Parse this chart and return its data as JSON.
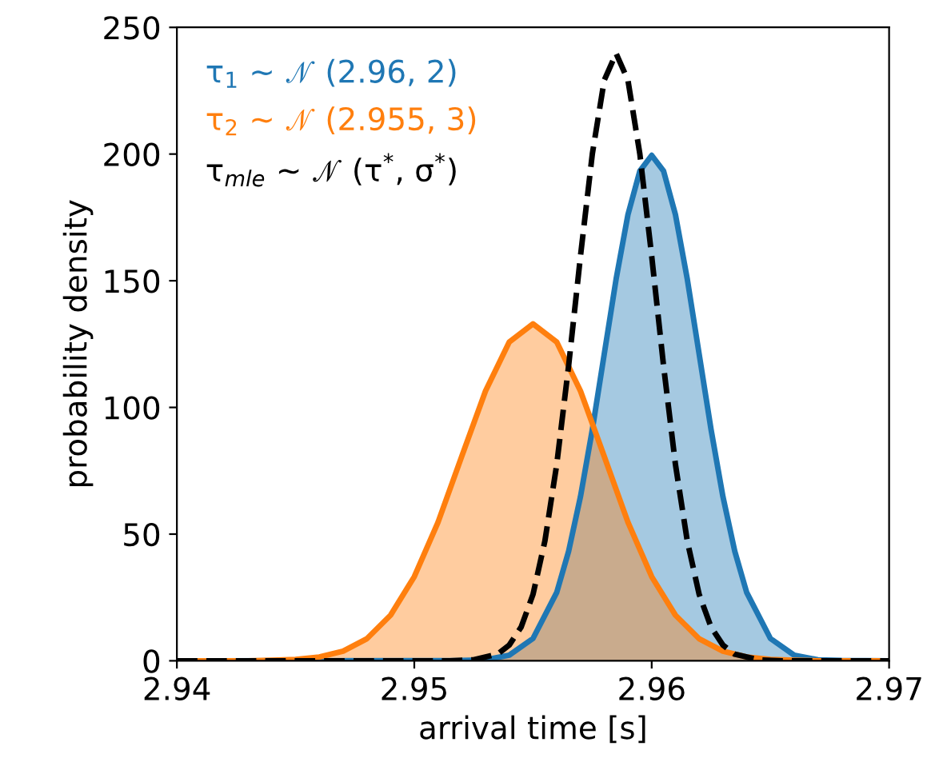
{
  "chart_data": {
    "type": "area",
    "xlabel": "arrival time [s]",
    "ylabel": "probability density",
    "xlim": [
      2.94,
      2.97
    ],
    "ylim": [
      0,
      250
    ],
    "xticks": [
      2.94,
      2.95,
      2.96,
      2.97
    ],
    "yticks": [
      0,
      50,
      100,
      150,
      200,
      250
    ],
    "grid": false,
    "series": [
      {
        "name": "τ$_{1}$ ∼ 𝒩 (2.96, 2)",
        "color": "#1f77b4",
        "x": [
          2.94,
          2.952,
          2.953,
          2.954,
          2.955,
          2.956,
          2.9565,
          2.957,
          2.9575,
          2.958,
          2.9585,
          2.959,
          2.9595,
          2.96,
          2.9605,
          2.961,
          2.9615,
          2.962,
          2.9625,
          2.963,
          2.9635,
          2.964,
          2.965,
          2.966,
          2.967,
          2.968,
          2.97
        ],
        "values": [
          0,
          0.1,
          0.4,
          2.2,
          8.8,
          27.0,
          43.2,
          64.8,
          91.3,
          121.0,
          150.6,
          176.1,
          193.3,
          199.5,
          193.3,
          176.1,
          150.6,
          121.0,
          91.3,
          64.8,
          43.2,
          27.0,
          8.8,
          2.2,
          0.4,
          0.1,
          0
        ]
      },
      {
        "name": "τ$_{2}$ ∼ 𝒩 (2.955, 3)",
        "color": "#ff7f0e",
        "x": [
          2.94,
          2.943,
          2.944,
          2.945,
          2.946,
          2.947,
          2.948,
          2.949,
          2.95,
          2.951,
          2.952,
          2.953,
          2.954,
          2.955,
          2.956,
          2.957,
          2.958,
          2.959,
          2.96,
          2.961,
          2.962,
          2.963,
          2.964,
          2.965,
          2.966,
          2.967,
          2.97
        ],
        "values": [
          0,
          0,
          0.2,
          0.5,
          1.5,
          3.8,
          8.7,
          18.0,
          33.2,
          54.7,
          80.7,
          106.5,
          125.8,
          133.0,
          125.8,
          106.5,
          80.7,
          54.7,
          33.2,
          18.0,
          8.7,
          3.8,
          1.5,
          0.5,
          0.2,
          0,
          0
        ]
      },
      {
        "name": "τ$_{mle}$ ∼ 𝒩 (τ$^{*}$, σ$^{*}$)",
        "color": "#000000",
        "type": "line",
        "line_style": "dashed",
        "x": [
          2.94,
          2.9515,
          2.9525,
          2.9535,
          2.954,
          2.9545,
          2.955,
          2.9555,
          2.956,
          2.9565,
          2.957,
          2.9575,
          2.958,
          2.9585,
          2.959,
          2.9595,
          2.96,
          2.9605,
          2.961,
          2.9615,
          2.962,
          2.9625,
          2.963,
          2.9635,
          2.9645,
          2.9655,
          2.97
        ],
        "values": [
          0,
          0,
          0.4,
          2.6,
          6.2,
          13.3,
          26.2,
          47.2,
          77.5,
          116.4,
          159.7,
          200.1,
          229.1,
          239.7,
          229.1,
          200.1,
          159.7,
          116.4,
          77.5,
          47.2,
          26.2,
          13.3,
          6.2,
          2.6,
          0.4,
          0,
          0
        ]
      }
    ]
  }
}
